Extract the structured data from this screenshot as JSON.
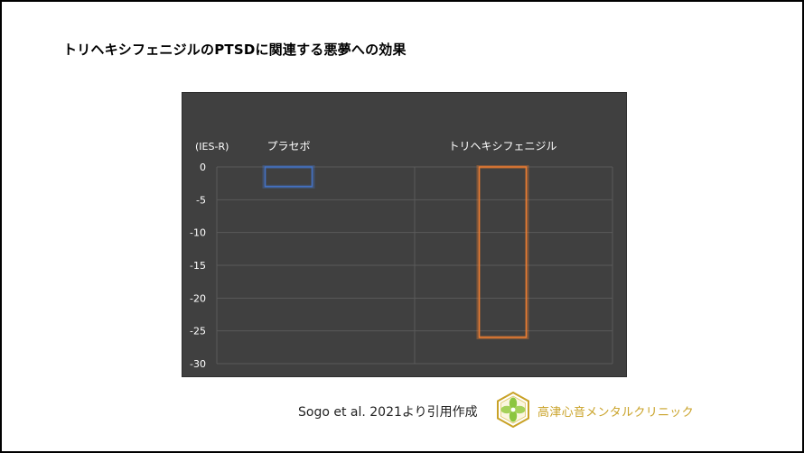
{
  "slide": {
    "title": "トリヘキシフェニジルのPTSDに関連する悪夢への効果",
    "citation": "Sogo et al. 2021より引用作成",
    "clinic_name": "高津心音メンタルクリニック"
  },
  "chart_data": {
    "type": "bar",
    "title": "",
    "ylabel": "(IES-R)",
    "xlabel": "",
    "categories": [
      "プラセボ",
      "トリヘキシフェニジル"
    ],
    "series": [
      {
        "values": [
          -3,
          -26
        ]
      }
    ],
    "bar_colors": [
      "#4472c4",
      "#ed7d31"
    ],
    "ylim": [
      -30,
      0
    ],
    "yticks": [
      0,
      -5,
      -10,
      -15,
      -20,
      -25,
      -30
    ],
    "ytick_labels": [
      "0",
      "-5",
      "-10",
      "-15",
      "-20",
      "-25",
      "-30"
    ],
    "grid": true,
    "bar_style": "outline",
    "category_labels_position": "top",
    "background_color": "#404040"
  },
  "colors": {
    "chart_background": "#404040",
    "gridline": "#5a5a5a",
    "axis_text": "#ffffff",
    "brand_gold": "#c9a227",
    "brand_green": "#8cc63f"
  }
}
